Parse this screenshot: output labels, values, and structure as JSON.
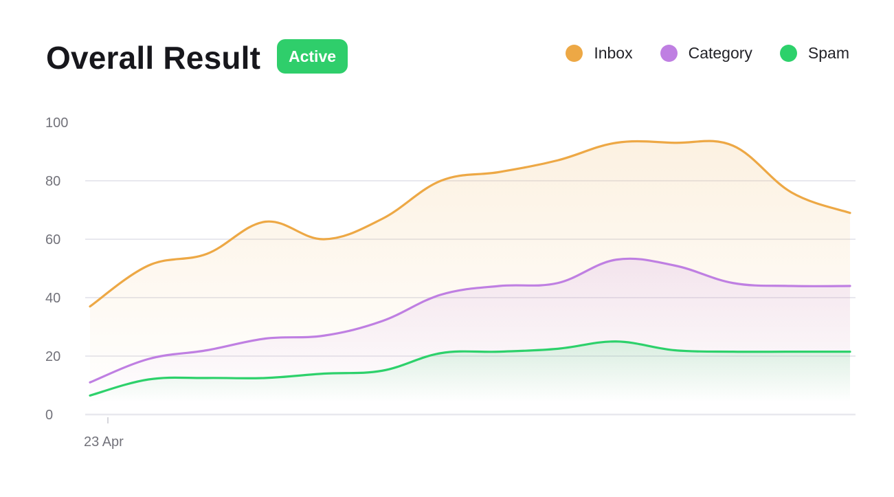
{
  "header": {
    "title": "Overall Result",
    "badge": "Active"
  },
  "colors": {
    "badge_bg": "#2fce6b",
    "inbox": "#eda845",
    "category": "#bf7fe2",
    "spam": "#2dd16b",
    "grid": "#e8e8ee",
    "axis_text": "#72727a"
  },
  "legend": [
    {
      "label": "Inbox",
      "color": "#eda845"
    },
    {
      "label": "Category",
      "color": "#bf7fe2"
    },
    {
      "label": "Spam",
      "color": "#2dd16b"
    }
  ],
  "chart_data": {
    "type": "area",
    "title": "Overall Result",
    "xlabel": "",
    "ylabel": "",
    "ylim": [
      0,
      100
    ],
    "yticks": [
      0,
      20,
      40,
      60,
      80,
      100
    ],
    "xtick_labels": [
      "23 Apr"
    ],
    "grid": true,
    "legend_position": "top-right",
    "x": [
      0,
      1,
      2,
      3,
      4,
      5,
      6,
      7,
      8,
      9,
      10,
      11,
      12,
      13
    ],
    "series": [
      {
        "name": "Inbox",
        "color": "#eda845",
        "values": [
          37,
          51,
          55,
          66,
          60,
          67,
          80,
          83,
          87,
          93,
          93,
          92,
          76,
          69
        ]
      },
      {
        "name": "Category",
        "color": "#bf7fe2",
        "values": [
          11,
          19,
          22,
          26,
          27,
          32,
          41,
          44,
          45,
          53,
          51,
          45,
          44,
          44
        ]
      },
      {
        "name": "Spam",
        "color": "#2dd16b",
        "values": [
          6.5,
          12,
          12.5,
          12.5,
          14,
          15,
          21,
          21.5,
          22.5,
          25,
          22,
          21.5,
          21.5,
          21.5
        ]
      }
    ]
  }
}
